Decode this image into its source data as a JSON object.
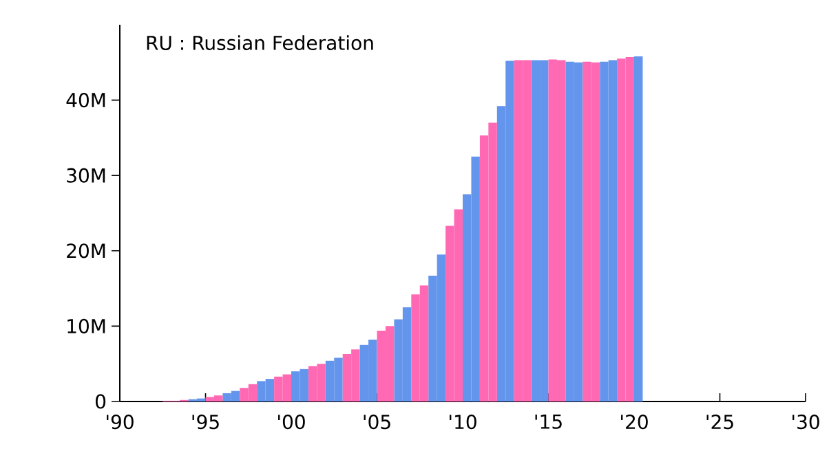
{
  "chart_data": {
    "type": "bar",
    "title": "RU : Russian Federation",
    "series": [
      {
        "color": "#6495ed",
        "x": [
          1994.0,
          1994.5,
          1996.0,
          1996.5,
          1998.0,
          1998.5,
          2000.0,
          2000.5,
          2002.0,
          2002.5,
          2004.0,
          2004.5,
          2006.0,
          2006.5,
          2008.0,
          2008.5,
          2010.0,
          2010.5,
          2012.0,
          2012.5,
          2014.0,
          2014.5,
          2016.0,
          2016.5,
          2018.0,
          2018.5,
          2020.0
        ],
        "values": [
          0.3,
          0.4,
          1.1,
          1.4,
          2.7,
          3.0,
          4.0,
          4.3,
          5.4,
          5.8,
          7.5,
          8.2,
          10.9,
          12.5,
          16.7,
          19.5,
          27.5,
          32.5,
          39.2,
          45.2,
          45.3,
          45.3,
          45.1,
          45.0,
          45.1,
          45.3,
          45.8
        ]
      },
      {
        "color": "#ff69b4",
        "x": [
          1992.5,
          1993.0,
          1993.5,
          1995.0,
          1995.5,
          1997.0,
          1997.5,
          1999.0,
          1999.5,
          2001.0,
          2001.5,
          2003.0,
          2003.5,
          2005.0,
          2005.5,
          2007.0,
          2007.5,
          2009.0,
          2009.5,
          2011.0,
          2011.5,
          2013.0,
          2013.5,
          2015.0,
          2015.5,
          2017.0,
          2017.5,
          2019.0,
          2019.5
        ],
        "values": [
          0.1,
          0.1,
          0.2,
          0.6,
          0.8,
          1.8,
          2.3,
          3.3,
          3.6,
          4.7,
          5.0,
          6.3,
          6.9,
          9.4,
          10.0,
          14.2,
          15.4,
          23.3,
          25.5,
          35.3,
          37.0,
          45.3,
          45.3,
          45.4,
          45.3,
          45.1,
          45.0,
          45.5,
          45.7
        ]
      }
    ],
    "xlim": [
      1990,
      2030
    ],
    "xticks": [
      {
        "value": 1990,
        "label": "'90"
      },
      {
        "value": 1995,
        "label": "'95"
      },
      {
        "value": 2000,
        "label": "'00"
      },
      {
        "value": 2005,
        "label": "'05"
      },
      {
        "value": 2010,
        "label": "'10"
      },
      {
        "value": 2015,
        "label": "'15"
      },
      {
        "value": 2020,
        "label": "'20"
      },
      {
        "value": 2025,
        "label": "'25"
      },
      {
        "value": 2030,
        "label": "'30"
      }
    ],
    "ylim": [
      0,
      50
    ],
    "yticks": [
      {
        "value": 0,
        "label": "0"
      },
      {
        "value": 10,
        "label": "10M"
      },
      {
        "value": 20,
        "label": "20M"
      },
      {
        "value": 30,
        "label": "30M"
      },
      {
        "value": 40,
        "label": "40M"
      }
    ]
  }
}
